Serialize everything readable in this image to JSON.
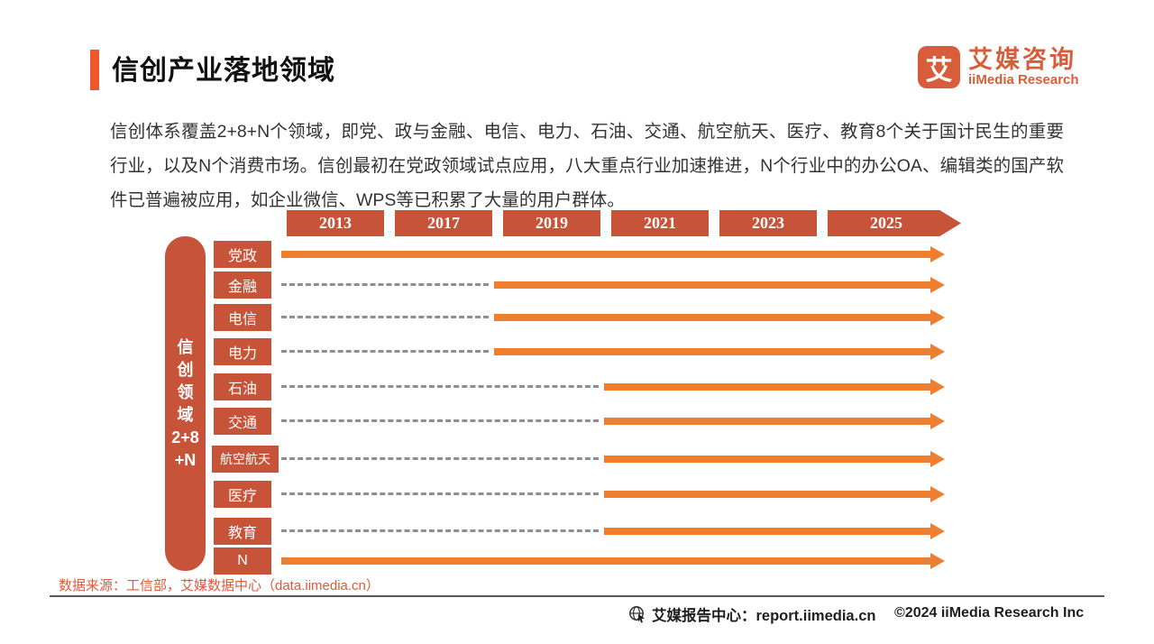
{
  "header": {
    "title": "信创产业落地领域",
    "logo": {
      "icon_char": "艾",
      "name_cn": "艾媒咨询",
      "name_en": "iiMedia Research"
    }
  },
  "intro": {
    "text": "信创体系覆盖2+8+N个领域，即党、政与金融、电信、电力、石油、交通、航空航天、医疗、教育8个关于国计民生的重要行业，以及N个消费市场。信创最初在党政领域试点应用，八大重点行业加速推进，N个行业中的办公OA、编辑类的国产软件已普遍被应用，如企业微信、WPS等已积累了大量的用户群体。"
  },
  "timeline": {
    "years": [
      "2013",
      "2017",
      "2019",
      "2021",
      "2023",
      "2025"
    ],
    "axis_label": "信创领域2+8+N",
    "axis_label_lines": [
      "信",
      "创",
      "领",
      "域",
      "2+8",
      "+N"
    ],
    "rows": [
      {
        "label": "党政",
        "start_year": "2013"
      },
      {
        "label": "金融",
        "start_year": "2019"
      },
      {
        "label": "电信",
        "start_year": "2019"
      },
      {
        "label": "电力",
        "start_year": "2019"
      },
      {
        "label": "石油",
        "start_year": "2021"
      },
      {
        "label": "交通",
        "start_year": "2021"
      },
      {
        "label": "航空航天",
        "start_year": "2021"
      },
      {
        "label": "医疗",
        "start_year": "2021"
      },
      {
        "label": "教育",
        "start_year": "2021"
      },
      {
        "label": "N",
        "start_year": "2013"
      }
    ]
  },
  "footnote": {
    "source": "数据来源：工信部，艾媒数据中心（data.iimedia.cn）"
  },
  "footer": {
    "report_center": "艾媒报告中心：report.iimedia.cn",
    "copyright": "©2024  iiMedia Research Inc"
  },
  "colors": {
    "box": "#C75339",
    "arrow": "#EE7E30",
    "accent": "#F2572B",
    "logo": "#D85E3B",
    "dash": "#8F8F8F",
    "source_text": "#DC5B3D"
  }
}
